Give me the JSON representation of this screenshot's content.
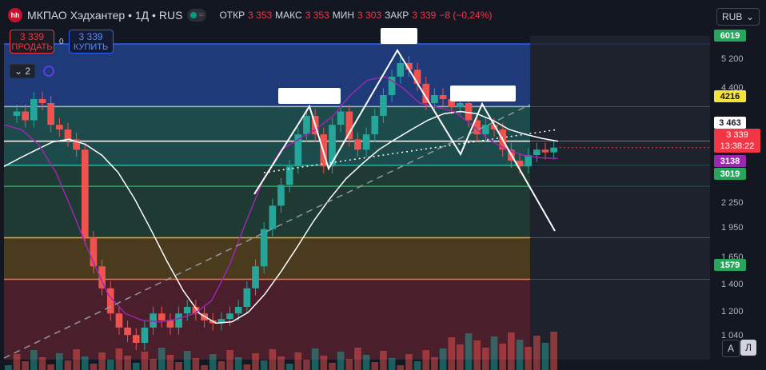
{
  "header": {
    "logo_text": "hh",
    "title": "МКПАО Хэдхантер • 1Д • RUS",
    "live_glyph": "≈",
    "ohlc": [
      {
        "key": "ОТКР",
        "value": "3 353"
      },
      {
        "key": "МАКС",
        "value": "3 353"
      },
      {
        "key": "МИН",
        "value": "3 303"
      },
      {
        "key": "ЗАКР",
        "value": "3 339"
      },
      {
        "key": "",
        "value": "−8 (−0,24%)"
      }
    ]
  },
  "trade": {
    "sell_price": "3 339",
    "sell_label": "ПРОДАТЬ",
    "spread": "0",
    "buy_price": "3 339",
    "buy_label": "КУПИТЬ"
  },
  "indicators": {
    "collapsed_count": "2",
    "chevron_icon": "chevron-down-icon"
  },
  "currency": {
    "value": "RUB",
    "icon": "chevron-down-icon"
  },
  "price_scale": {
    "ticks": [
      "5 200",
      "4 400",
      "2 250",
      "1 950",
      "1 650",
      "1 400",
      "1 200",
      "1 040"
    ],
    "tags": [
      {
        "text": "6019",
        "color": "#26a65b"
      },
      {
        "text": "4216",
        "color": "#f5e33b"
      },
      {
        "text": "3 463",
        "color": "#ffffff"
      },
      {
        "text": "3138",
        "color": "#9c27b0"
      },
      {
        "text": "3019",
        "color": "#26a65b"
      },
      {
        "text": "1579",
        "color": "#26a65b"
      }
    ],
    "current_price": "3 339",
    "countdown": "13:38:22"
  },
  "buttons": {
    "auto": "A",
    "log": "Л"
  },
  "chart_data": {
    "type": "line",
    "log_scale": true,
    "ylim": [
      1000,
      6300
    ],
    "levels": [
      6019,
      4216,
      3463,
      3019,
      2680,
      2000,
      1579
    ],
    "zones": [
      {
        "from": 4216,
        "to": 6019,
        "color": "#1e3a78"
      },
      {
        "from": 3019,
        "to": 4216,
        "color": "#1d4a4a"
      },
      {
        "from": 2000,
        "to": 3019,
        "color": "#1e3a33"
      },
      {
        "from": 1579,
        "to": 2000,
        "color": "#4a3a1e"
      },
      {
        "from": 1000,
        "to": 1579,
        "color": "#4a1e2a"
      }
    ],
    "series": [
      {
        "name": "",
        "color": "#f23645",
        "values": [
          4000,
          4100,
          3900,
          4400,
          4300,
          3800,
          3700,
          3500,
          3300,
          2000,
          1700,
          1500,
          1300,
          1200,
          1150,
          1100,
          1200,
          1300,
          1250,
          1200,
          1300,
          1350,
          1300,
          1250,
          1230,
          1260,
          1300,
          1350,
          1500,
          1700,
          2100,
          2400,
          2700,
          3000,
          3600,
          4000,
          3600,
          3000,
          3800,
          4100,
          3500,
          3300,
          3600,
          4000,
          4500,
          5000,
          5400,
          5200,
          4800,
          4300,
          4500,
          4400,
          4200,
          4300,
          3900,
          3600,
          3800,
          3700,
          3300,
          3100,
          3000,
          3200,
          3300,
          3250,
          3339
        ]
      },
      {
        "name": "",
        "color": "#ffffff",
        "values": [
          3000,
          3150,
          3300,
          3450,
          3500,
          3400,
          3200,
          2900,
          2500,
          2100,
          1750,
          1480,
          1300,
          1230,
          1240,
          1310,
          1450,
          1650,
          1900,
          2200,
          2500,
          2800,
          3050,
          3300,
          3500,
          3700,
          3900,
          4050,
          4100,
          4050,
          3900,
          3700,
          3600,
          3520,
          3463
        ]
      },
      {
        "name": "",
        "color": "#9c27b0",
        "values": [
          3800,
          3700,
          3400,
          2900,
          2300,
          1800,
          1450,
          1300,
          1250,
          1240,
          1260,
          1300,
          1400,
          1700,
          2200,
          2800,
          3300,
          3500,
          3700,
          4000,
          4500,
          4900,
          5000,
          4700,
          4300,
          4200,
          4100,
          3800,
          3500,
          3300,
          3200,
          3150,
          3138
        ]
      }
    ]
  }
}
